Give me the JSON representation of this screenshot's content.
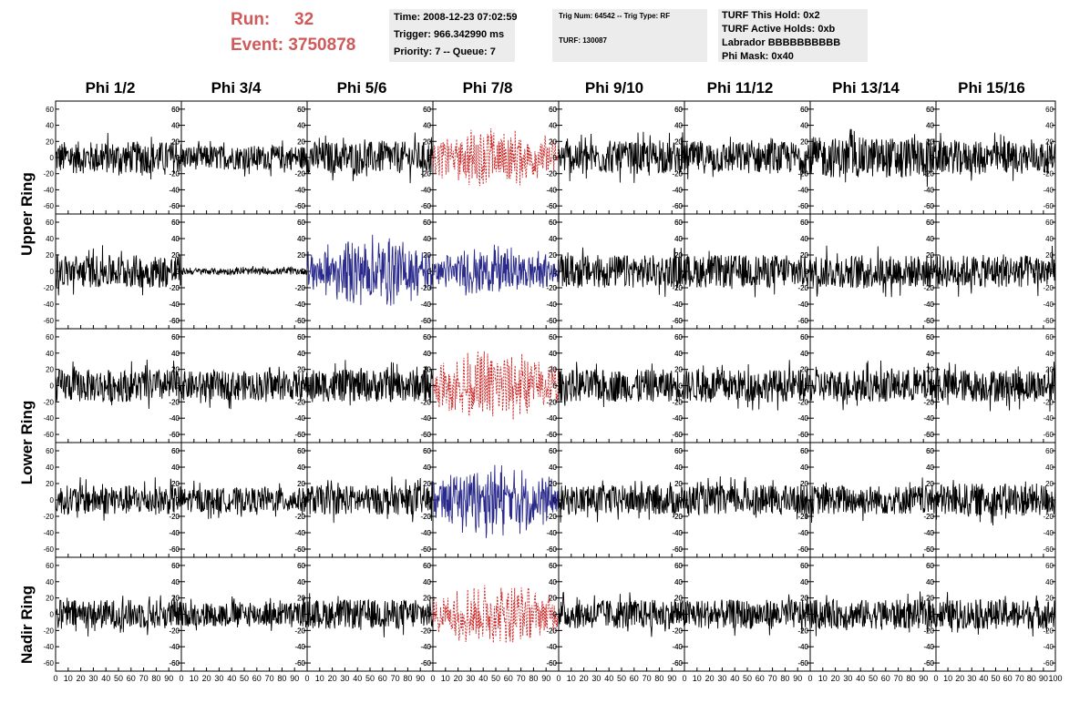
{
  "run": {
    "run_label": "Run:",
    "run_value": "32",
    "event_label": "Event:",
    "event_value": "3750878"
  },
  "info_time": {
    "time": "Time: 2008-12-23 07:02:59",
    "trigger": "Trigger: 966.342990 ms",
    "priority": "Priority: 7 -- Queue: 7"
  },
  "info_trig": {
    "trig": "Trig Num: 64542 -- Trig Type: RF",
    "turf": "TURF: 130087"
  },
  "info_turf": {
    "hold": "TURF This Hold: 0x2",
    "active": "TURF Active Holds: 0xb",
    "labrador": "Labrador BBBBBBBBBB",
    "phimask": "Phi Mask: 0x40"
  },
  "columns": [
    "Phi 1/2",
    "Phi 3/4",
    "Phi 5/6",
    "Phi 7/8",
    "Phi 9/10",
    "Phi 11/12",
    "Phi 13/14",
    "Phi 15/16"
  ],
  "ring_labels": {
    "upper": "Upper Ring",
    "lower": "Lower Ring",
    "nadir": "Nadir Ring"
  },
  "colors": {
    "normal": "#000000",
    "triggered": "#cc2222",
    "highlighted": "#2a2a8c",
    "title_accent": "#d05a5a"
  },
  "chart_data": {
    "type": "line",
    "x_range": [
      0,
      100
    ],
    "y_range": [
      -70,
      70
    ],
    "y_ticks": [
      -60,
      -40,
      -20,
      0,
      20,
      40,
      60
    ],
    "x_ticks": [
      0,
      10,
      20,
      30,
      40,
      50,
      60,
      70,
      80,
      90,
      100
    ],
    "x_tick_labels": [
      "0",
      "10",
      "20",
      "30",
      "40",
      "50",
      "60",
      "70",
      "80",
      "90",
      "100"
    ],
    "panel_styles": [
      [
        "normal",
        "normal",
        "normal",
        "triggered",
        "normal",
        "normal",
        "normal",
        "normal"
      ],
      [
        "normal",
        "quiet",
        "highlighted",
        "highlighted",
        "normal",
        "normal",
        "normal",
        "normal"
      ],
      [
        "normal",
        "normal",
        "normal",
        "triggered",
        "normal",
        "normal",
        "normal",
        "normal"
      ],
      [
        "normal",
        "normal",
        "normal",
        "highlighted",
        "normal",
        "normal",
        "normal",
        "normal"
      ],
      [
        "normal",
        "normal",
        "normal",
        "triggered",
        "normal",
        "normal",
        "normal",
        "normal"
      ]
    ],
    "approx_amplitude": [
      [
        20,
        15,
        20,
        30,
        20,
        20,
        25,
        20
      ],
      [
        20,
        4,
        35,
        25,
        20,
        20,
        20,
        20
      ],
      [
        20,
        18,
        20,
        35,
        20,
        20,
        20,
        20
      ],
      [
        18,
        15,
        18,
        35,
        18,
        18,
        18,
        20
      ],
      [
        18,
        15,
        18,
        30,
        18,
        18,
        18,
        18
      ]
    ]
  }
}
